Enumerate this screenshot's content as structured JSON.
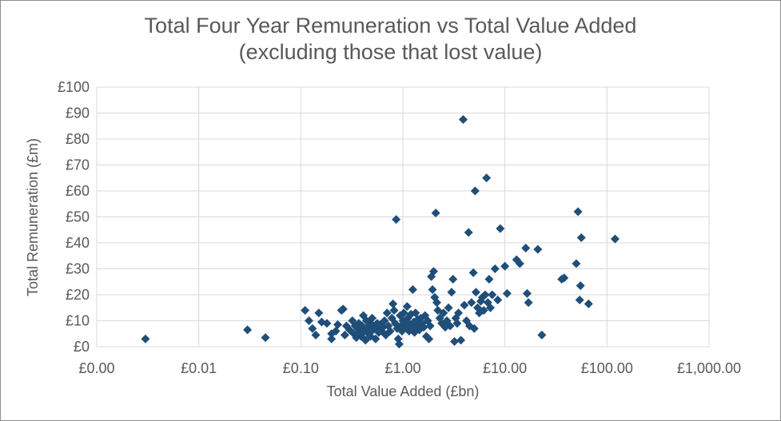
{
  "chart_data": {
    "type": "scatter",
    "title": "Total Four Year Remuneration vs Total Value Added",
    "subtitle": "(excluding those that lost value)",
    "xlabel": "Total Value Added (£bn)",
    "ylabel": "Total Remuneration (£m)",
    "x_scale": "log",
    "xlim": [
      0.001,
      1000
    ],
    "ylim": [
      0,
      100
    ],
    "x_ticks": [
      0.001,
      0.01,
      0.1,
      1,
      10,
      100,
      1000
    ],
    "x_tick_labels": [
      "£0.00",
      "£0.01",
      "£0.10",
      "£1.00",
      "£10.00",
      "£100.00",
      "£1,000.00"
    ],
    "y_ticks": [
      0,
      10,
      20,
      30,
      40,
      50,
      60,
      70,
      80,
      90,
      100
    ],
    "y_tick_labels": [
      "£0",
      "£10",
      "£20",
      "£30",
      "£40",
      "£50",
      "£60",
      "£70",
      "£80",
      "£90",
      "£100"
    ],
    "grid": true,
    "marker": "diamond",
    "color": "#1f4e79",
    "points": [
      [
        0.003,
        3
      ],
      [
        0.03,
        6.5
      ],
      [
        0.045,
        3.5
      ],
      [
        0.11,
        14
      ],
      [
        0.12,
        10
      ],
      [
        0.13,
        7
      ],
      [
        0.14,
        4.5
      ],
      [
        0.15,
        13
      ],
      [
        0.16,
        9.5
      ],
      [
        0.18,
        9
      ],
      [
        0.2,
        5
      ],
      [
        0.2,
        3
      ],
      [
        0.22,
        6
      ],
      [
        0.23,
        8.5
      ],
      [
        0.25,
        14
      ],
      [
        0.26,
        14.5
      ],
      [
        0.27,
        4.5
      ],
      [
        0.28,
        8
      ],
      [
        0.3,
        6.5
      ],
      [
        0.32,
        10
      ],
      [
        0.33,
        5
      ],
      [
        0.34,
        8
      ],
      [
        0.35,
        3.5
      ],
      [
        0.36,
        7
      ],
      [
        0.37,
        9
      ],
      [
        0.38,
        5.5
      ],
      [
        0.39,
        4
      ],
      [
        0.4,
        8
      ],
      [
        0.41,
        12
      ],
      [
        0.42,
        6
      ],
      [
        0.43,
        2.5
      ],
      [
        0.44,
        10
      ],
      [
        0.45,
        7.5
      ],
      [
        0.46,
        5
      ],
      [
        0.47,
        9.5
      ],
      [
        0.48,
        4
      ],
      [
        0.5,
        11
      ],
      [
        0.51,
        6.5
      ],
      [
        0.52,
        8
      ],
      [
        0.54,
        3
      ],
      [
        0.55,
        7
      ],
      [
        0.56,
        9
      ],
      [
        0.58,
        5.5
      ],
      [
        0.6,
        8.5
      ],
      [
        0.62,
        6
      ],
      [
        0.64,
        7.5
      ],
      [
        0.66,
        10
      ],
      [
        0.68,
        4.5
      ],
      [
        0.7,
        13
      ],
      [
        0.72,
        8
      ],
      [
        0.75,
        6
      ],
      [
        0.78,
        11
      ],
      [
        0.8,
        16.5
      ],
      [
        0.82,
        14
      ],
      [
        0.84,
        9
      ],
      [
        0.86,
        49
      ],
      [
        0.88,
        7
      ],
      [
        0.9,
        3
      ],
      [
        0.92,
        1
      ],
      [
        0.94,
        12
      ],
      [
        0.96,
        8
      ],
      [
        0.98,
        6
      ],
      [
        1.0,
        10
      ],
      [
        1.02,
        13
      ],
      [
        1.05,
        7.5
      ],
      [
        1.08,
        9
      ],
      [
        1.1,
        15.5
      ],
      [
        1.12,
        11
      ],
      [
        1.15,
        6
      ],
      [
        1.18,
        8.5
      ],
      [
        1.2,
        12.5
      ],
      [
        1.22,
        7
      ],
      [
        1.25,
        22
      ],
      [
        1.28,
        9.5
      ],
      [
        1.3,
        5.5
      ],
      [
        1.33,
        13
      ],
      [
        1.36,
        8
      ],
      [
        1.4,
        10.5
      ],
      [
        1.45,
        6.5
      ],
      [
        1.5,
        11
      ],
      [
        1.55,
        9
      ],
      [
        1.6,
        7.5
      ],
      [
        1.65,
        12
      ],
      [
        1.7,
        4
      ],
      [
        1.75,
        10
      ],
      [
        1.8,
        3
      ],
      [
        1.85,
        8
      ],
      [
        1.9,
        27
      ],
      [
        1.95,
        22
      ],
      [
        2.0,
        29
      ],
      [
        2.05,
        19
      ],
      [
        2.1,
        51.5
      ],
      [
        2.15,
        17
      ],
      [
        2.2,
        14
      ],
      [
        2.3,
        11
      ],
      [
        2.4,
        9
      ],
      [
        2.5,
        13
      ],
      [
        2.6,
        7.5
      ],
      [
        2.7,
        10
      ],
      [
        2.8,
        15
      ],
      [
        2.9,
        8
      ],
      [
        3.0,
        21
      ],
      [
        3.1,
        26
      ],
      [
        3.2,
        2
      ],
      [
        3.3,
        11
      ],
      [
        3.4,
        9
      ],
      [
        3.5,
        13
      ],
      [
        3.7,
        2.5
      ],
      [
        3.9,
        87.5
      ],
      [
        4.0,
        16
      ],
      [
        4.2,
        10
      ],
      [
        4.4,
        44
      ],
      [
        4.5,
        8
      ],
      [
        4.7,
        17
      ],
      [
        4.9,
        28.5
      ],
      [
        5.0,
        7
      ],
      [
        5.1,
        60
      ],
      [
        5.2,
        21
      ],
      [
        5.4,
        15
      ],
      [
        5.6,
        13
      ],
      [
        5.8,
        17.5
      ],
      [
        6.0,
        19
      ],
      [
        6.2,
        14
      ],
      [
        6.4,
        20
      ],
      [
        6.6,
        65
      ],
      [
        6.8,
        17
      ],
      [
        7.0,
        26
      ],
      [
        7.2,
        15
      ],
      [
        7.5,
        20
      ],
      [
        8.0,
        30
      ],
      [
        8.5,
        18
      ],
      [
        9.0,
        45.5
      ],
      [
        10.0,
        31
      ],
      [
        10.5,
        20.5
      ],
      [
        13.0,
        33.5
      ],
      [
        14.0,
        32
      ],
      [
        16.0,
        38
      ],
      [
        16.5,
        20.5
      ],
      [
        17.0,
        17
      ],
      [
        21.0,
        37.5
      ],
      [
        23.0,
        4.5
      ],
      [
        36.0,
        26
      ],
      [
        38.0,
        26.5
      ],
      [
        50.0,
        32
      ],
      [
        52.0,
        52
      ],
      [
        54.0,
        18
      ],
      [
        55.0,
        23.5
      ],
      [
        56.0,
        42
      ],
      [
        66.0,
        16.5
      ],
      [
        120.0,
        41.5
      ]
    ]
  }
}
